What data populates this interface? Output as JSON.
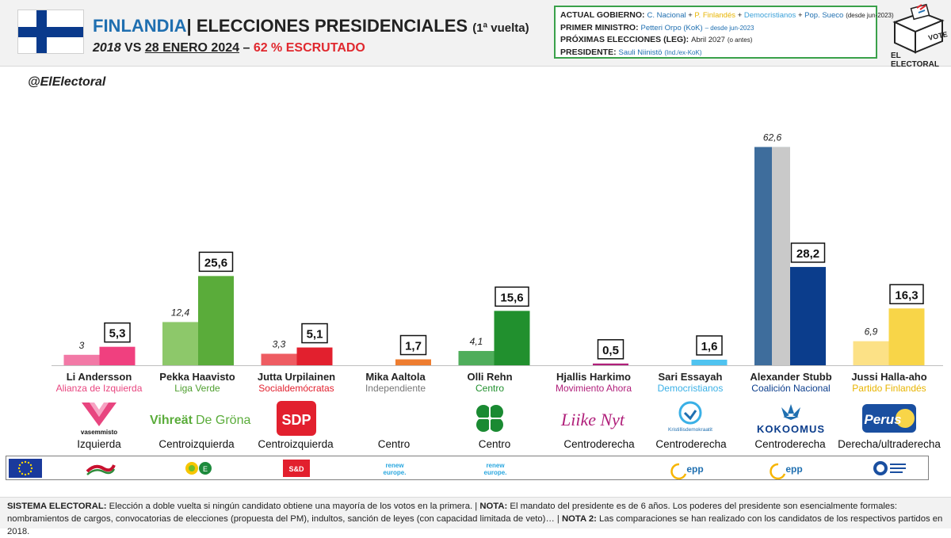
{
  "header": {
    "country": "FINLANDIA",
    "title_rest": "| ELECCIONES PRESIDENCIALES",
    "title_round": "(1ª vuelta)",
    "sub_year_a": "2018",
    "sub_vs": " VS ",
    "sub_date": "28 ENERO 2024",
    "sub_dash": " – ",
    "sub_count": "62 % ESCRUTADO"
  },
  "gov": {
    "l1_label": "ACTUAL GOBIERNO:",
    "l1_p1": "C. Nacional",
    "l1_p2": "P. Finlandés",
    "l1_p3": "Democristianos",
    "l1_p4": "Pop. Sueco",
    "l1_note": "(desde jun-2023)",
    "l2_label": "PRIMER MINISTRO:",
    "l2_val": "Petteri Orpo (KoK)",
    "l2_note": "– desde jun-2023",
    "l3_label": "PRÓXIMAS ELECCIONES (LEG):",
    "l3_val": "Abril 2027",
    "l3_note": "(o antes)",
    "l4_label": "PRESIDENTE:",
    "l4_val": "Sauli Niinistö",
    "l4_note": "(Ind./ex-KoK)"
  },
  "logo": {
    "box_text": "VOTE",
    "brand": "EL ELECTORAL"
  },
  "handle": "@ElElectoral",
  "chart_data": {
    "type": "bar",
    "categories": [
      "Li Andersson",
      "Pekka Haavisto",
      "Jutta Urpilainen",
      "Mika Aaltola",
      "Olli Rehn",
      "Hjallis Harkimo",
      "Sari Essayah",
      "Alexander Stubb",
      "Jussi Halla-aho"
    ],
    "series": [
      {
        "name": "2018",
        "values": [
          3,
          12.4,
          3.3,
          null,
          4.1,
          null,
          null,
          62.6,
          6.9
        ],
        "labels": [
          "3",
          "12,4",
          "3,3",
          "",
          "4,1",
          "",
          "",
          "62,6",
          "6,9"
        ]
      },
      {
        "name": "2024",
        "values": [
          5.3,
          25.6,
          5.1,
          1.7,
          15.6,
          0.5,
          1.6,
          28.2,
          16.3
        ],
        "labels": [
          "5,3",
          "25,6",
          "5,1",
          "1,7",
          "15,6",
          "0,5",
          "1,6",
          "28,2",
          "16,3"
        ]
      }
    ],
    "colors_2018": [
      "#f279a6",
      "#8dc86a",
      "#ee5c62",
      "",
      "#4fad5b",
      "",
      "",
      "#3e6d9c",
      "#fce186"
    ],
    "colors_2024": [
      "#f0407f",
      "#5aac3a",
      "#e2202e",
      "#ee7d30",
      "#21902e",
      "#b01f7a",
      "#4fc3f0",
      "#0b3d8c",
      "#f8d548"
    ],
    "ylim": [
      0,
      65
    ]
  },
  "candidates": [
    {
      "name": "Li Andersson",
      "party": "Alianza de Izquierda",
      "party_color": "#e8457f",
      "ideology": "Izquierda",
      "logo": "vasemmisto-logo",
      "logo_text": "vasemmisto"
    },
    {
      "name": "Pekka Haavisto",
      "party": "Liga Verde",
      "party_color": "#4e9e2e",
      "ideology": "Centroizquierda",
      "logo": "vihreat-logo",
      "logo_text": "Vihreät",
      "logo_text2": "De Gröna"
    },
    {
      "name": "Jutta Urpilainen",
      "party": "Socialdemócratas",
      "party_color": "#e2202e",
      "ideology": "Centroizquierda",
      "logo": "sdp-logo",
      "logo_text": "SDP"
    },
    {
      "name": "Mika Aaltola",
      "party": "Independiente",
      "party_color": "#777777",
      "ideology": "Centro",
      "logo": "",
      "logo_text": ""
    },
    {
      "name": "Olli Rehn",
      "party": "Centro",
      "party_color": "#21902e",
      "ideology": "Centro",
      "logo": "keskusta-logo",
      "logo_text": ""
    },
    {
      "name": "Hjallis Harkimo",
      "party": "Movimiento Ahora",
      "party_color": "#b01f7a",
      "ideology": "Centroderecha",
      "logo": "liike-nyt-logo",
      "logo_text": "Liike Nyt"
    },
    {
      "name": "Sari Essayah",
      "party": "Democristianos",
      "party_color": "#3ab0e6",
      "ideology": "Centroderecha",
      "logo": "kd-logo",
      "logo_text": "Kristillisdemokraatit"
    },
    {
      "name": "Alexander Stubb",
      "party": "Coalición Nacional",
      "party_color": "#0b3d8c",
      "ideology": "Centroderecha",
      "logo": "kokoomus-logo",
      "logo_text": "KOKOOMUS"
    },
    {
      "name": "Jussi Halla-aho",
      "party": "Partido Finlandés",
      "party_color": "#e8b400",
      "ideology": "Derecha/ultraderecha",
      "logo": "perus-logo",
      "logo_text": "Perus"
    }
  ],
  "eu_groups": [
    {
      "label": "",
      "icon": "left-group-icon"
    },
    {
      "label": "",
      "icon": "greens-efa-icon"
    },
    {
      "label": "S&D",
      "icon": "sd-icon"
    },
    {
      "label": "renew europe.",
      "icon": "renew-icon"
    },
    {
      "label": "renew europe.",
      "icon": "renew-icon"
    },
    {
      "label": "epp",
      "icon": "epp-icon"
    },
    {
      "label": "epp",
      "icon": "epp-icon"
    },
    {
      "label": "",
      "icon": "ecr-icon"
    }
  ],
  "footer": {
    "b1": "SISTEMA ELECTORAL:",
    "t1": " Elección a doble vuelta si ningún candidato obtiene una mayoría de los votos en la primera. | ",
    "b2": "NOTA:",
    "t2": " El mandato del presidente es de 6 años.  Los poderes del presidente son esencialmente formales: nombramientos de cargos, convocatorias de elecciones (propuesta del PM), indultos, sanción de leyes (con capacidad limitada de veto)…  | ",
    "b3": "NOTA 2:",
    "t3": " Las comparaciones se han realizado con los candidatos de los respectivos partidos en 2018."
  }
}
